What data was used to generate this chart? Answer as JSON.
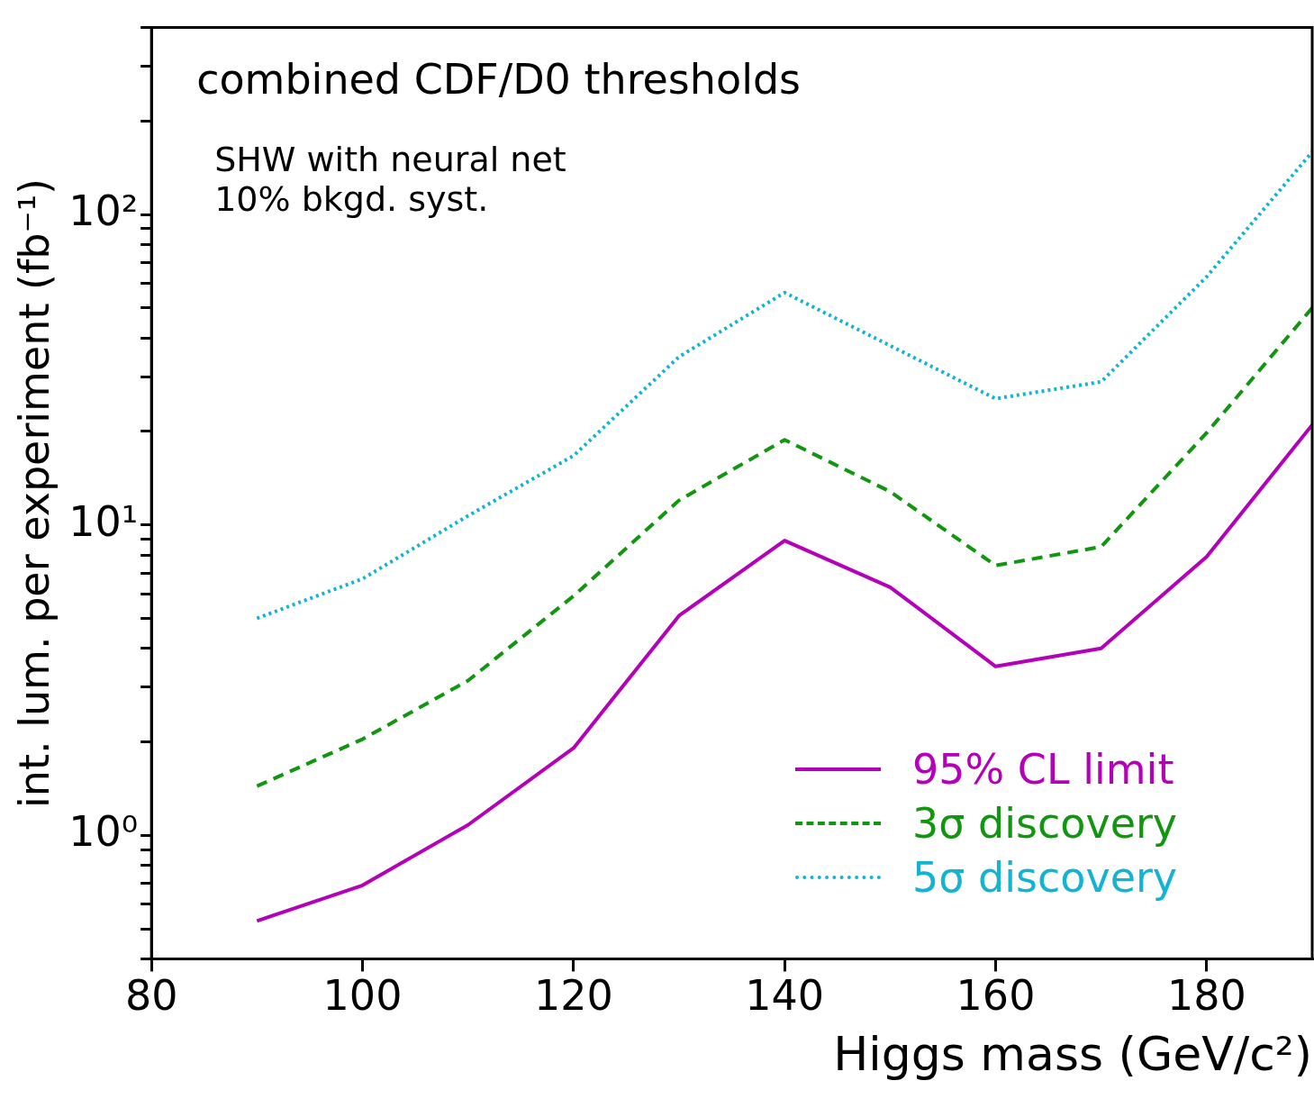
{
  "chart_data": {
    "type": "line",
    "xlabel": "Higgs mass (GeV/c²)",
    "ylabel": "int. lum. per experiment (fb⁻¹)",
    "annotations": [
      "combined CDF/D0 thresholds",
      "SHW with neural net",
      "10% bkgd. syst."
    ],
    "x": [
      90,
      100,
      110,
      120,
      130,
      140,
      150,
      160,
      170,
      180,
      190
    ],
    "series": [
      {
        "name": "95% CL limit",
        "color": "#b400b8",
        "line_style": "solid",
        "values": [
          0.53,
          0.69,
          1.08,
          1.91,
          5.1,
          8.9,
          6.3,
          3.5,
          4.0,
          7.9,
          21
        ]
      },
      {
        "name": "3σ discovery",
        "color": "#10960f",
        "line_style": "dashed",
        "values": [
          1.44,
          2.04,
          3.15,
          5.9,
          12,
          18.8,
          12.8,
          7.4,
          8.5,
          19.8,
          50
        ]
      },
      {
        "name": "5σ discovery",
        "color": "#12b4d2",
        "line_style": "dotted",
        "values": [
          5.0,
          6.7,
          10.7,
          16.7,
          34.8,
          56,
          37.8,
          25.5,
          28.9,
          63,
          159
        ]
      }
    ],
    "xlim": [
      80,
      190
    ],
    "xticks": [
      80,
      100,
      120,
      140,
      160,
      180
    ],
    "ylim": [
      0.4,
      400
    ],
    "log": "y",
    "yticks": [
      {
        "value": 0.4,
        "label": null
      },
      {
        "value": 0.5,
        "label": null
      },
      {
        "value": 0.6,
        "label": null
      },
      {
        "value": 0.7,
        "label": null
      },
      {
        "value": 0.8,
        "label": null
      },
      {
        "value": 0.9,
        "label": null
      },
      {
        "value": 1,
        "label": "10⁰"
      },
      {
        "value": 2,
        "label": null
      },
      {
        "value": 3,
        "label": null
      },
      {
        "value": 4,
        "label": null
      },
      {
        "value": 5,
        "label": null
      },
      {
        "value": 6,
        "label": null
      },
      {
        "value": 7,
        "label": null
      },
      {
        "value": 8,
        "label": null
      },
      {
        "value": 9,
        "label": null
      },
      {
        "value": 10,
        "label": "10¹"
      },
      {
        "value": 20,
        "label": null
      },
      {
        "value": 30,
        "label": null
      },
      {
        "value": 40,
        "label": null
      },
      {
        "value": 50,
        "label": null
      },
      {
        "value": 60,
        "label": null
      },
      {
        "value": 70,
        "label": null
      },
      {
        "value": 80,
        "label": null
      },
      {
        "value": 90,
        "label": null
      },
      {
        "value": 100,
        "label": "10²"
      },
      {
        "value": 200,
        "label": null
      },
      {
        "value": 300,
        "label": null
      },
      {
        "value": 400,
        "label": null
      }
    ],
    "grid": false,
    "legend": "bottom right",
    "marker": "none"
  }
}
